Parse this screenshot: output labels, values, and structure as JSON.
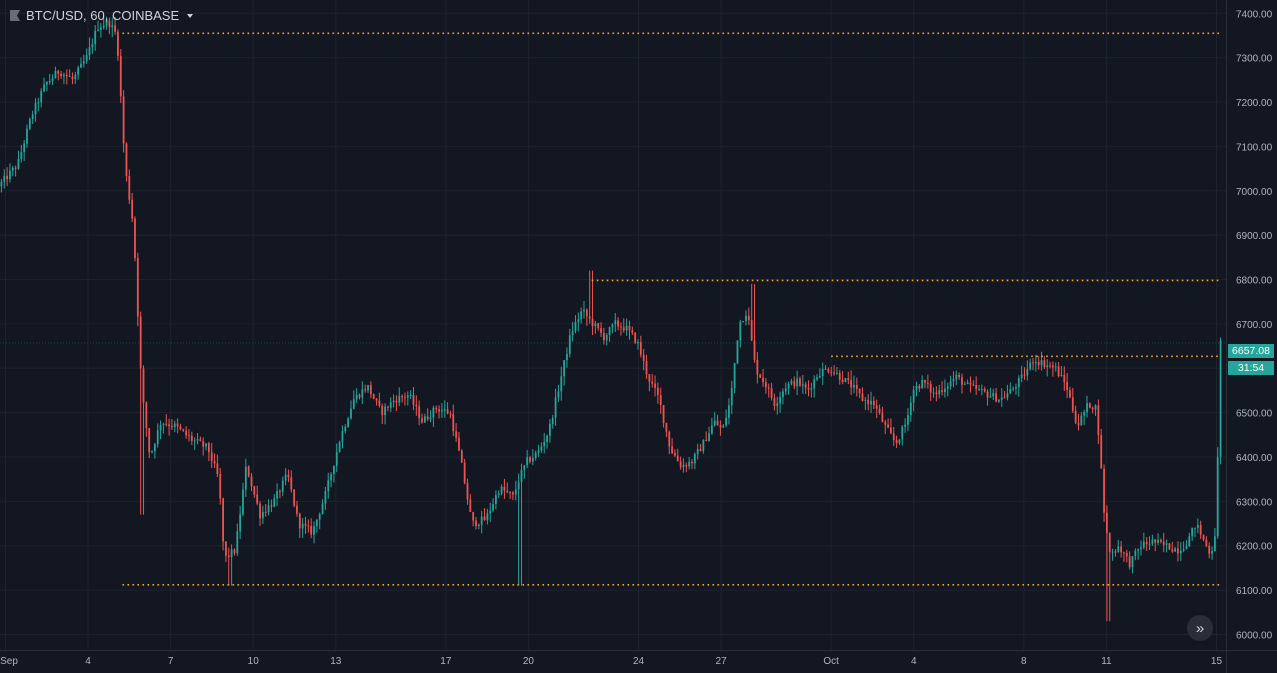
{
  "header": {
    "symbol": "BTC/USD, 60, COINBASE",
    "flag_icon": "flag-icon",
    "dropdown_icon": "caret-down-icon"
  },
  "colors": {
    "background": "#131722",
    "grid": "#1e222d",
    "up": "#26a69a",
    "down": "#ef5350",
    "level_line": "#f5a623",
    "axis_text": "#b2b5be",
    "axis_line": "#2a2e39"
  },
  "last_price": "6657.08",
  "countdown": "31:54",
  "scroll_button_icon": "double-chevron-right-icon",
  "scroll_button_glyph": "»",
  "chart_data": {
    "type": "candlestick",
    "title": "BTC/USD, 60, COINBASE",
    "xlabel": "",
    "ylabel": "",
    "ylim": [
      5965,
      7430
    ],
    "grid": true,
    "y_ticks": [
      6000,
      6100,
      6200,
      6300,
      6400,
      6500,
      6600,
      6700,
      6800,
      6900,
      7000,
      7100,
      7200,
      7300,
      7400
    ],
    "y_tick_labels": [
      "6000.00",
      "6100.00",
      "6200.00",
      "6300.00",
      "6400.00",
      "6500.00",
      "6600.00",
      "6700.00",
      "6800.00",
      "6900.00",
      "7000.00",
      "7100.00",
      "7200.00",
      "7300.00",
      "7400.00"
    ],
    "xlim": [
      0.8,
      45.2
    ],
    "x_ticks": [
      {
        "day": 1,
        "label": "Sep"
      },
      {
        "day": 4,
        "label": "4"
      },
      {
        "day": 7,
        "label": "7"
      },
      {
        "day": 10,
        "label": "10"
      },
      {
        "day": 13,
        "label": "13"
      },
      {
        "day": 17,
        "label": "17"
      },
      {
        "day": 20,
        "label": "20"
      },
      {
        "day": 24,
        "label": "24"
      },
      {
        "day": 27,
        "label": "27"
      },
      {
        "day": 31,
        "label": "Oct"
      },
      {
        "day": 34,
        "label": "4"
      },
      {
        "day": 38,
        "label": "8"
      },
      {
        "day": 41,
        "label": "11"
      },
      {
        "day": 45,
        "label": "15"
      }
    ],
    "price_path": [
      [
        0.8,
        7010
      ],
      [
        1.5,
        7060
      ],
      [
        2.0,
        7170
      ],
      [
        2.5,
        7240
      ],
      [
        3.0,
        7270
      ],
      [
        3.5,
        7250
      ],
      [
        4.0,
        7300
      ],
      [
        4.4,
        7370
      ],
      [
        4.8,
        7380
      ],
      [
        5.1,
        7350
      ],
      [
        5.4,
        7050
      ],
      [
        5.7,
        6920
      ],
      [
        6.0,
        6550
      ],
      [
        6.3,
        6400
      ],
      [
        6.7,
        6480
      ],
      [
        7.2,
        6470
      ],
      [
        7.8,
        6440
      ],
      [
        8.4,
        6420
      ],
      [
        8.8,
        6350
      ],
      [
        9.0,
        6170
      ],
      [
        9.4,
        6190
      ],
      [
        9.8,
        6380
      ],
      [
        10.3,
        6270
      ],
      [
        10.8,
        6300
      ],
      [
        11.3,
        6360
      ],
      [
        11.7,
        6250
      ],
      [
        12.2,
        6230
      ],
      [
        12.7,
        6320
      ],
      [
        13.2,
        6440
      ],
      [
        13.7,
        6530
      ],
      [
        14.2,
        6560
      ],
      [
        14.7,
        6500
      ],
      [
        15.2,
        6530
      ],
      [
        15.7,
        6540
      ],
      [
        16.2,
        6480
      ],
      [
        16.7,
        6510
      ],
      [
        17.2,
        6500
      ],
      [
        17.6,
        6390
      ],
      [
        18.0,
        6250
      ],
      [
        18.5,
        6260
      ],
      [
        19.0,
        6330
      ],
      [
        19.5,
        6310
      ],
      [
        19.7,
        6350
      ],
      [
        20.0,
        6390
      ],
      [
        20.4,
        6410
      ],
      [
        20.8,
        6460
      ],
      [
        21.2,
        6570
      ],
      [
        21.6,
        6680
      ],
      [
        22.0,
        6730
      ],
      [
        22.4,
        6700
      ],
      [
        22.8,
        6670
      ],
      [
        23.2,
        6700
      ],
      [
        23.6,
        6690
      ],
      [
        24.0,
        6660
      ],
      [
        24.4,
        6580
      ],
      [
        24.8,
        6530
      ],
      [
        25.2,
        6420
      ],
      [
        25.6,
        6380
      ],
      [
        26.0,
        6390
      ],
      [
        26.4,
        6430
      ],
      [
        26.8,
        6480
      ],
      [
        27.1,
        6460
      ],
      [
        27.4,
        6530
      ],
      [
        27.7,
        6700
      ],
      [
        28.0,
        6730
      ],
      [
        28.3,
        6600
      ],
      [
        28.7,
        6560
      ],
      [
        29.0,
        6520
      ],
      [
        29.4,
        6560
      ],
      [
        29.8,
        6570
      ],
      [
        30.2,
        6550
      ],
      [
        30.6,
        6590
      ],
      [
        31.0,
        6600
      ],
      [
        31.4,
        6580
      ],
      [
        31.8,
        6560
      ],
      [
        32.2,
        6530
      ],
      [
        32.6,
        6520
      ],
      [
        33.0,
        6470
      ],
      [
        33.4,
        6430
      ],
      [
        33.8,
        6480
      ],
      [
        34.0,
        6550
      ],
      [
        34.4,
        6570
      ],
      [
        34.8,
        6540
      ],
      [
        35.2,
        6560
      ],
      [
        35.6,
        6580
      ],
      [
        36.0,
        6560
      ],
      [
        36.4,
        6550
      ],
      [
        36.8,
        6540
      ],
      [
        37.2,
        6530
      ],
      [
        37.6,
        6550
      ],
      [
        38.0,
        6580
      ],
      [
        38.4,
        6620
      ],
      [
        38.8,
        6610
      ],
      [
        39.2,
        6600
      ],
      [
        39.6,
        6560
      ],
      [
        40.0,
        6470
      ],
      [
        40.4,
        6520
      ],
      [
        40.7,
        6510
      ],
      [
        41.0,
        6250
      ],
      [
        41.2,
        6180
      ],
      [
        41.5,
        6200
      ],
      [
        41.9,
        6160
      ],
      [
        42.3,
        6200
      ],
      [
        42.7,
        6210
      ],
      [
        43.2,
        6200
      ],
      [
        43.7,
        6190
      ],
      [
        44.0,
        6210
      ],
      [
        44.3,
        6250
      ],
      [
        44.6,
        6210
      ],
      [
        44.85,
        6180
      ],
      [
        45.0,
        6230
      ],
      [
        45.1,
        6400
      ],
      [
        45.2,
        6657.08
      ]
    ],
    "spikes": [
      {
        "day": 5.9,
        "low": 6270
      },
      {
        "day": 9.1,
        "low": 6110
      },
      {
        "day": 19.6,
        "low": 6110
      },
      {
        "day": 22.2,
        "high": 6820
      },
      {
        "day": 28.1,
        "high": 6790
      },
      {
        "day": 41.0,
        "low": 6030
      }
    ],
    "levels": [
      {
        "price": 7355,
        "from_day": 5.25,
        "to_day": 45.2
      },
      {
        "price": 6798,
        "from_day": 22.3,
        "to_day": 45.2
      },
      {
        "price": 6627,
        "from_day": 31.0,
        "to_day": 45.2
      },
      {
        "price": 6112,
        "from_day": 5.25,
        "to_day": 45.2
      }
    ]
  }
}
